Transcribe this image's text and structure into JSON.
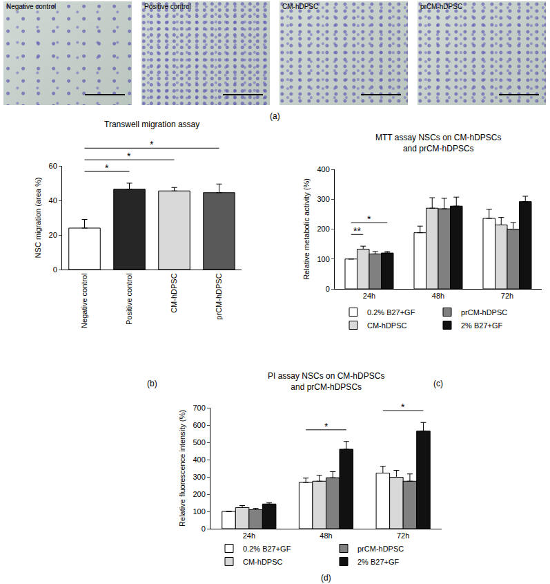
{
  "panel_labels": [
    "(a)",
    "(b)",
    "(c)",
    "(d)"
  ],
  "images": [
    "Negative control",
    "Positive control",
    "CM-hDPSC",
    "prCM-hDPSC"
  ],
  "chart_data": [
    {
      "type": "bar",
      "title": "Transwell migration assay",
      "y_label": "NSC migration (area %)",
      "categories": [
        "Negative control",
        "Positive control",
        "CM-hDPSC",
        "prCM-hDPSC"
      ],
      "values": [
        24,
        46.5,
        45.5,
        44.5
      ],
      "errors": [
        5,
        3.5,
        2,
        5
      ],
      "colors": [
        "#ffffff",
        "#262626",
        "#d9d9d9",
        "#595959"
      ],
      "ylim": [
        0,
        60
      ],
      "yticks": [
        0,
        20,
        40,
        60
      ],
      "significance": [
        {
          "from": "Negative control",
          "to": "Positive control",
          "label": "*"
        },
        {
          "from": "Negative control",
          "to": "CM-hDPSC",
          "label": "*"
        },
        {
          "from": "Negative control",
          "to": "prCM-hDPSC",
          "label": "*"
        }
      ]
    },
    {
      "type": "bar",
      "title": "MTT assay NSCs on CM-hDPSCs\nand prCM-hDPSCs",
      "y_label": "Relative metabolic activity (%)",
      "categories": [
        "24h",
        "48h",
        "72h"
      ],
      "series": [
        {
          "name": "0.2% B27+GF",
          "color": "#ffffff",
          "values": [
            100,
            188,
            236
          ],
          "errors": [
            0,
            22,
            30
          ]
        },
        {
          "name": "CM-hDPSC",
          "color": "#d9d9d9",
          "values": [
            133,
            270,
            214
          ],
          "errors": [
            10,
            35,
            25
          ]
        },
        {
          "name": "prCM-hDPSC",
          "color": "#808080",
          "values": [
            117,
            268,
            200
          ],
          "errors": [
            8,
            35,
            22
          ]
        },
        {
          "name": "2% B27+GF",
          "color": "#111111",
          "values": [
            120,
            277,
            292
          ],
          "errors": [
            5,
            30,
            18
          ]
        }
      ],
      "ylim": [
        0,
        400
      ],
      "yticks": [
        0,
        100,
        200,
        300,
        400
      ],
      "legend": "bottom",
      "significance": [
        {
          "category": "24h",
          "from": "0.2% B27+GF",
          "to": "CM-hDPSC",
          "label": "**"
        },
        {
          "category": "24h",
          "from": "0.2% B27+GF",
          "to": "2% B27+GF",
          "label": "*"
        }
      ]
    },
    {
      "type": "bar",
      "title": "PI assay NSCs on CM-hDPSCs\nand prCM-hDPSCs",
      "y_label": "Relative fluorescence intensity (%)",
      "categories": [
        "24h",
        "48h",
        "72h"
      ],
      "series": [
        {
          "name": "0.2% B27+GF",
          "color": "#ffffff",
          "values": [
            100,
            268,
            322
          ],
          "errors": [
            0,
            25,
            40
          ]
        },
        {
          "name": "CM-hDPSC",
          "color": "#d9d9d9",
          "values": [
            122,
            275,
            298
          ],
          "errors": [
            12,
            35,
            40
          ]
        },
        {
          "name": "prCM-hDPSC",
          "color": "#808080",
          "values": [
            110,
            295,
            275
          ],
          "errors": [
            8,
            35,
            42
          ]
        },
        {
          "name": "2% B27+GF",
          "color": "#111111",
          "values": [
            143,
            460,
            565
          ],
          "errors": [
            8,
            45,
            50
          ]
        }
      ],
      "ylim": [
        0,
        700
      ],
      "yticks": [
        0,
        100,
        200,
        300,
        400,
        500,
        600,
        700
      ],
      "legend": "bottom",
      "significance": [
        {
          "category": "48h",
          "from": "0.2% B27+GF",
          "to": "2% B27+GF",
          "label": "*"
        },
        {
          "category": "72h",
          "from": "0.2% B27+GF",
          "to": "2% B27+GF",
          "label": "*"
        }
      ]
    }
  ]
}
